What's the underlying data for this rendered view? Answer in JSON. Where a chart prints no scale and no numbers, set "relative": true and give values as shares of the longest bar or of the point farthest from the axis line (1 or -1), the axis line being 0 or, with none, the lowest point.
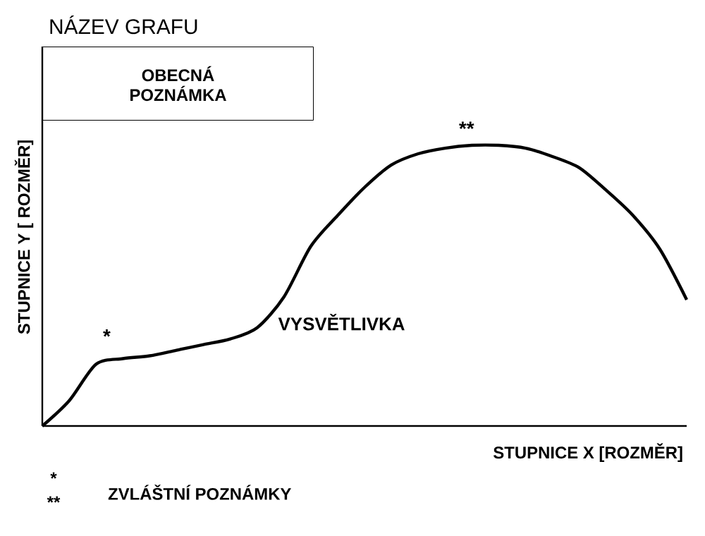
{
  "chart_data": {
    "type": "line",
    "title": "NÁZEV GRAFU",
    "xlabel": "STUPNICE X [ROZMĚR]",
    "ylabel": "STUPNICE Y [ ROZMĚR]",
    "relative": true,
    "categories": [
      null,
      null,
      null,
      null,
      null,
      null,
      null,
      null,
      null,
      null,
      null,
      null,
      null,
      null,
      null,
      null,
      null,
      null,
      null,
      null,
      null,
      null,
      null,
      null,
      null
    ],
    "series": [
      {
        "name": "VYSVĚTLIVKA",
        "color": "#000000",
        "values": [
          0,
          0.09,
          0.22,
          0.24,
          0.25,
          0.27,
          0.29,
          0.31,
          0.35,
          0.46,
          0.64,
          0.75,
          0.85,
          0.93,
          0.97,
          0.99,
          1,
          1,
          0.99,
          0.96,
          0.92,
          0.84,
          0.75,
          0.63,
          0.45
        ]
      }
    ],
    "annotations": [
      "OBECNÁ POZNÁMKA",
      "*",
      "**",
      "*",
      "**",
      "ZVLÁŠTNÍ POZNÁMKY"
    ]
  }
}
